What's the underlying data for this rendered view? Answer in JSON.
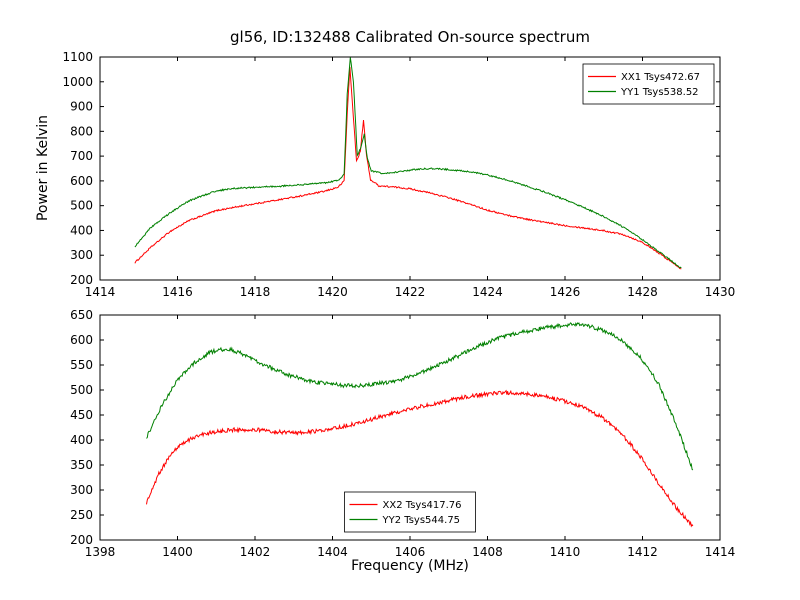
{
  "figure": {
    "title": "gl56, ID:132488 Calibrated On-source spectrum",
    "xlabel": "Frequency (MHz)",
    "ylabel": "Power in Kelvin"
  },
  "chart_data": [
    {
      "type": "line",
      "xlim": [
        1414,
        1430
      ],
      "ylim": [
        200,
        1100
      ],
      "xticks": [
        1414,
        1416,
        1418,
        1420,
        1422,
        1424,
        1426,
        1428,
        1430
      ],
      "yticks": [
        200,
        300,
        400,
        500,
        600,
        700,
        800,
        900,
        1000,
        1100
      ],
      "grid": false,
      "legend": {
        "position": "upper-right"
      },
      "series": [
        {
          "name": "XX1 Tsys472.67",
          "color": "#ff0000",
          "noise": 3,
          "points": [
            [
              1414.9,
              270
            ],
            [
              1415.3,
              330
            ],
            [
              1415.8,
              395
            ],
            [
              1416.3,
              440
            ],
            [
              1417,
              480
            ],
            [
              1417.7,
              500
            ],
            [
              1418.4,
              518
            ],
            [
              1419.2,
              540
            ],
            [
              1419.8,
              558
            ],
            [
              1420.15,
              575
            ],
            [
              1420.3,
              600
            ],
            [
              1420.38,
              870
            ],
            [
              1420.45,
              1060
            ],
            [
              1420.52,
              900
            ],
            [
              1420.62,
              680
            ],
            [
              1420.72,
              720
            ],
            [
              1420.8,
              845
            ],
            [
              1420.88,
              700
            ],
            [
              1420.98,
              605
            ],
            [
              1421.2,
              580
            ],
            [
              1421.6,
              575
            ],
            [
              1422,
              568
            ],
            [
              1422.5,
              552
            ],
            [
              1423,
              532
            ],
            [
              1423.5,
              508
            ],
            [
              1424,
              482
            ],
            [
              1424.5,
              462
            ],
            [
              1425,
              446
            ],
            [
              1425.5,
              432
            ],
            [
              1426,
              420
            ],
            [
              1426.5,
              410
            ],
            [
              1427,
              399
            ],
            [
              1427.5,
              384
            ],
            [
              1428,
              352
            ],
            [
              1428.5,
              300
            ],
            [
              1429,
              245
            ]
          ]
        },
        {
          "name": "YY1 Tsys538.52",
          "color": "#008000",
          "noise": 3,
          "points": [
            [
              1414.9,
              335
            ],
            [
              1415.3,
              410
            ],
            [
              1415.8,
              470
            ],
            [
              1416.3,
              520
            ],
            [
              1417,
              560
            ],
            [
              1417.5,
              570
            ],
            [
              1418,
              574
            ],
            [
              1418.6,
              578
            ],
            [
              1419.2,
              584
            ],
            [
              1419.8,
              592
            ],
            [
              1420.15,
              602
            ],
            [
              1420.3,
              625
            ],
            [
              1420.38,
              950
            ],
            [
              1420.46,
              1100
            ],
            [
              1420.54,
              1000
            ],
            [
              1420.64,
              700
            ],
            [
              1420.74,
              740
            ],
            [
              1420.82,
              790
            ],
            [
              1420.9,
              690
            ],
            [
              1421,
              640
            ],
            [
              1421.3,
              630
            ],
            [
              1421.7,
              636
            ],
            [
              1422.1,
              646
            ],
            [
              1422.5,
              650
            ],
            [
              1423,
              646
            ],
            [
              1423.5,
              638
            ],
            [
              1424,
              624
            ],
            [
              1424.5,
              604
            ],
            [
              1425,
              580
            ],
            [
              1425.5,
              554
            ],
            [
              1426,
              524
            ],
            [
              1426.5,
              492
            ],
            [
              1427,
              456
            ],
            [
              1427.5,
              414
            ],
            [
              1428,
              362
            ],
            [
              1428.5,
              306
            ],
            [
              1429,
              248
            ]
          ]
        }
      ]
    },
    {
      "type": "line",
      "xlim": [
        1398,
        1414
      ],
      "ylim": [
        200,
        650
      ],
      "xticks": [
        1398,
        1400,
        1402,
        1404,
        1406,
        1408,
        1410,
        1412,
        1414
      ],
      "yticks": [
        200,
        250,
        300,
        350,
        400,
        450,
        500,
        550,
        600,
        650
      ],
      "grid": false,
      "legend": {
        "position": "lower-center"
      },
      "series": [
        {
          "name": "XX2 Tsys417.76",
          "color": "#ff0000",
          "noise": 4,
          "points": [
            [
              1399.2,
              275
            ],
            [
              1399.5,
              330
            ],
            [
              1399.8,
              368
            ],
            [
              1400.1,
              392
            ],
            [
              1400.5,
              408
            ],
            [
              1401,
              417
            ],
            [
              1401.5,
              421
            ],
            [
              1402,
              421
            ],
            [
              1402.5,
              417
            ],
            [
              1403,
              414
            ],
            [
              1403.5,
              417
            ],
            [
              1404,
              422
            ],
            [
              1404.5,
              431
            ],
            [
              1405,
              441
            ],
            [
              1405.5,
              452
            ],
            [
              1406,
              462
            ],
            [
              1406.5,
              471
            ],
            [
              1407,
              479
            ],
            [
              1407.5,
              487
            ],
            [
              1408,
              492
            ],
            [
              1408.4,
              495
            ],
            [
              1408.9,
              493
            ],
            [
              1409.4,
              488
            ],
            [
              1409.9,
              480
            ],
            [
              1410.4,
              468
            ],
            [
              1410.9,
              448
            ],
            [
              1411.4,
              418
            ],
            [
              1411.9,
              372
            ],
            [
              1412.4,
              315
            ],
            [
              1412.9,
              262
            ],
            [
              1413.3,
              228
            ]
          ]
        },
        {
          "name": "YY2 Tsys544.75",
          "color": "#008000",
          "noise": 4,
          "points": [
            [
              1399.2,
              405
            ],
            [
              1399.6,
              470
            ],
            [
              1400,
              520
            ],
            [
              1400.4,
              552
            ],
            [
              1400.8,
              574
            ],
            [
              1401.1,
              581
            ],
            [
              1401.4,
              580
            ],
            [
              1401.8,
              568
            ],
            [
              1402.3,
              548
            ],
            [
              1402.8,
              532
            ],
            [
              1403.3,
              520
            ],
            [
              1403.8,
              513
            ],
            [
              1404.3,
              509
            ],
            [
              1404.8,
              509
            ],
            [
              1405.3,
              514
            ],
            [
              1405.8,
              522
            ],
            [
              1406.3,
              536
            ],
            [
              1406.8,
              552
            ],
            [
              1407.3,
              570
            ],
            [
              1407.8,
              589
            ],
            [
              1408.3,
              604
            ],
            [
              1408.8,
              614
            ],
            [
              1409.3,
              622
            ],
            [
              1409.8,
              628
            ],
            [
              1410.2,
              631
            ],
            [
              1410.6,
              629
            ],
            [
              1411,
              619
            ],
            [
              1411.4,
              602
            ],
            [
              1411.9,
              570
            ],
            [
              1412.4,
              515
            ],
            [
              1412.9,
              425
            ],
            [
              1413.3,
              340
            ]
          ]
        }
      ]
    }
  ]
}
